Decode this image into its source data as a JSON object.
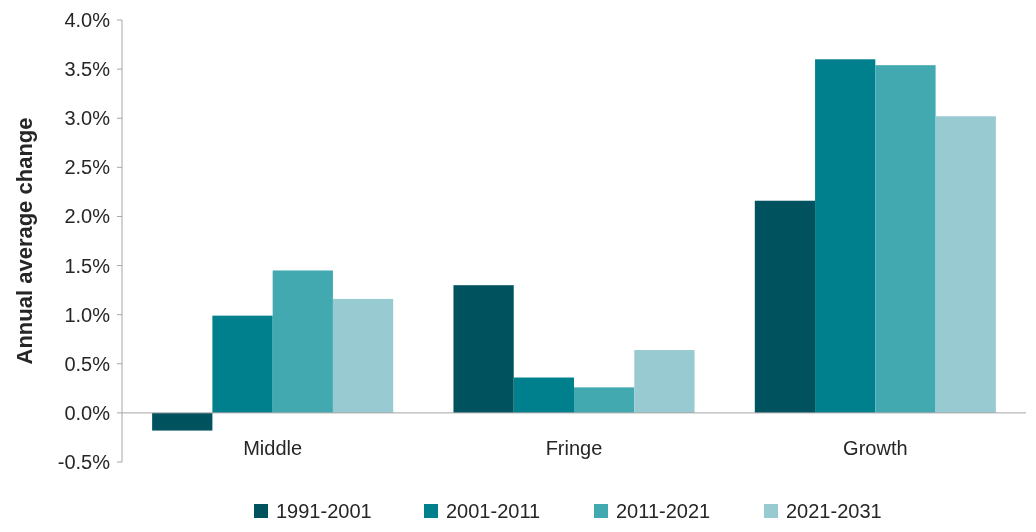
{
  "chart_data": {
    "type": "bar",
    "ylabel": "Annual average change",
    "categories": [
      "Middle",
      "Fringe",
      "Growth"
    ],
    "series": [
      {
        "name": "1991-2001",
        "color": "#00535e",
        "values": [
          -0.18,
          1.3,
          2.16
        ]
      },
      {
        "name": "2001-2011",
        "color": "#007f8c",
        "values": [
          0.99,
          0.36,
          3.6
        ]
      },
      {
        "name": "2011-2021",
        "color": "#43a9b1",
        "values": [
          1.45,
          0.26,
          3.54
        ]
      },
      {
        "name": "2021-2031",
        "color": "#98cbd1",
        "values": [
          1.16,
          0.64,
          3.02
        ]
      }
    ],
    "ylim": [
      -0.5,
      4
    ],
    "yticks": [
      {
        "value": -0.5,
        "label": "-0.5%"
      },
      {
        "value": 0,
        "label": "0.0%"
      },
      {
        "value": 0.5,
        "label": "0.5%"
      },
      {
        "value": 1,
        "label": "1.0%"
      },
      {
        "value": 1.5,
        "label": "1.5%"
      },
      {
        "value": 2,
        "label": "2.0%"
      },
      {
        "value": 2.5,
        "label": "2.5%"
      },
      {
        "value": 3,
        "label": "3.0%"
      },
      {
        "value": 3.5,
        "label": "3.5%"
      },
      {
        "value": 4,
        "label": "4.0%"
      }
    ],
    "legend": "bottom"
  }
}
